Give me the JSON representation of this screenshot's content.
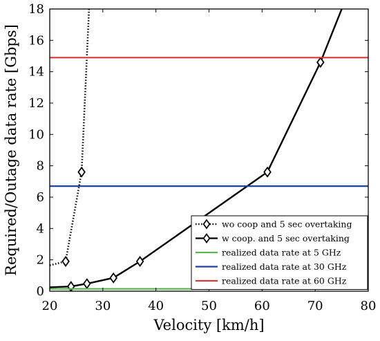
{
  "chart_data": {
    "type": "line",
    "xlabel": "Velocity [km/h]",
    "ylabel": "Required/Outage data rate [Gbps]",
    "xlim": [
      20,
      80
    ],
    "ylim": [
      0,
      18
    ],
    "xticks": [
      20,
      30,
      40,
      50,
      60,
      70,
      80
    ],
    "yticks": [
      0,
      2,
      4,
      6,
      8,
      10,
      12,
      14,
      16,
      18
    ],
    "grid": false,
    "legend_position": "bottom-right",
    "series": [
      {
        "name": "wo coop and 5 sec overtaking",
        "style": "dotted",
        "marker": "diamond",
        "color": "#000000",
        "x": [
          20,
          23,
          26,
          27.4
        ],
        "y": [
          1.65,
          1.9,
          7.6,
          18
        ],
        "marker_x": [
          23,
          26
        ],
        "marker_y": [
          1.9,
          7.6
        ]
      },
      {
        "name": "w coop. and 5 sec overtaking",
        "style": "solid",
        "marker": "diamond",
        "color": "#000000",
        "x": [
          20,
          24,
          27,
          32,
          37,
          61,
          71,
          75
        ],
        "y": [
          0.25,
          0.3,
          0.48,
          0.85,
          1.9,
          7.6,
          14.6,
          18
        ],
        "marker_x": [
          24,
          27,
          32,
          37,
          61,
          71
        ],
        "marker_y": [
          0.3,
          0.48,
          0.85,
          1.9,
          7.6,
          14.6
        ]
      },
      {
        "name": "realized data rate at 5 GHz",
        "style": "solid",
        "marker": "none",
        "color": "#5ab552",
        "x": [
          20,
          80
        ],
        "y": [
          0.15,
          0.15
        ]
      },
      {
        "name": "realized data rate at 30 GHz",
        "style": "solid",
        "marker": "none",
        "color": "#2342a0",
        "x": [
          20,
          80
        ],
        "y": [
          6.7,
          6.7
        ]
      },
      {
        "name": "realized data rate at 60 GHz",
        "style": "solid",
        "marker": "none",
        "color": "#d83a35",
        "x": [
          20,
          80
        ],
        "y": [
          14.9,
          14.9
        ]
      }
    ]
  }
}
